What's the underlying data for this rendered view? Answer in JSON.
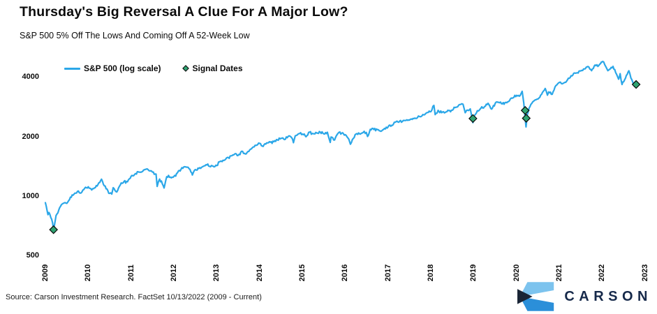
{
  "title": "Thursday's Big Reversal A Clue For A Major Low?",
  "subtitle": "S&P 500 5% Off The Lows And Coming Off A 52-Week Low",
  "legend": {
    "items": [
      {
        "label": "S&P 500 (log scale)",
        "type": "line"
      },
      {
        "label": "Signal Dates",
        "type": "diamond"
      }
    ]
  },
  "source_note": "Source: Carson Investment Research. FactSet 10/13/2022 (2009 - Current)",
  "logo": {
    "wordmark": "CARSON"
  },
  "colors": {
    "line": "#2BA7E8",
    "signal": "#2FA472",
    "signal_outline": "#0a0a0a",
    "text": "#0b0b0b",
    "navy": "#16294A",
    "logo_light": "#7CC3EE",
    "logo_mid": "#2B8FD9",
    "logo_dark": "#1A2536"
  },
  "chart_data": {
    "type": "line",
    "title": "S&P 500 (log scale) with Signal Dates",
    "xlabel": "",
    "ylabel": "",
    "log_scale": true,
    "grid": false,
    "legend_position": "top-left",
    "xlim": [
      2009,
      2023
    ],
    "ylim": [
      460,
      5200
    ],
    "x_ticks": [
      2009,
      2010,
      2011,
      2012,
      2013,
      2014,
      2015,
      2016,
      2017,
      2018,
      2019,
      2020,
      2021,
      2022,
      2023
    ],
    "y_ticks": [
      4000,
      2000,
      1000,
      500
    ],
    "series": [
      {
        "name": "S&P 500",
        "points": [
          [
            2009,
            926
          ],
          [
            2009.06,
            805
          ],
          [
            2009.083,
            826
          ],
          [
            2009.167,
            735
          ],
          [
            2009.19,
            677
          ],
          [
            2009.25,
            798
          ],
          [
            2009.333,
            873
          ],
          [
            2009.417,
            919
          ],
          [
            2009.5,
            919
          ],
          [
            2009.583,
            987
          ],
          [
            2009.667,
            1021
          ],
          [
            2009.75,
            1057
          ],
          [
            2009.833,
            1036
          ],
          [
            2009.917,
            1096
          ],
          [
            2010,
            1115
          ],
          [
            2010.083,
            1074
          ],
          [
            2010.167,
            1104
          ],
          [
            2010.25,
            1169
          ],
          [
            2010.31,
            1217
          ],
          [
            2010.333,
            1187
          ],
          [
            2010.417,
            1089
          ],
          [
            2010.5,
            1031
          ],
          [
            2010.55,
            1023
          ],
          [
            2010.583,
            1102
          ],
          [
            2010.667,
            1049
          ],
          [
            2010.75,
            1141
          ],
          [
            2010.833,
            1183
          ],
          [
            2010.917,
            1181
          ],
          [
            2011,
            1258
          ],
          [
            2011.083,
            1286
          ],
          [
            2011.167,
            1327
          ],
          [
            2011.25,
            1326
          ],
          [
            2011.333,
            1364
          ],
          [
            2011.417,
            1345
          ],
          [
            2011.5,
            1321
          ],
          [
            2011.583,
            1292
          ],
          [
            2011.61,
            1119
          ],
          [
            2011.667,
            1219
          ],
          [
            2011.75,
            1131
          ],
          [
            2011.77,
            1099
          ],
          [
            2011.833,
            1253
          ],
          [
            2011.917,
            1247
          ],
          [
            2012,
            1258
          ],
          [
            2012.083,
            1312
          ],
          [
            2012.167,
            1366
          ],
          [
            2012.25,
            1408
          ],
          [
            2012.333,
            1398
          ],
          [
            2012.417,
            1310
          ],
          [
            2012.43,
            1278
          ],
          [
            2012.5,
            1362
          ],
          [
            2012.583,
            1379
          ],
          [
            2012.667,
            1407
          ],
          [
            2012.75,
            1441
          ],
          [
            2012.833,
            1412
          ],
          [
            2012.917,
            1416
          ],
          [
            2013,
            1426
          ],
          [
            2013.083,
            1498
          ],
          [
            2013.167,
            1515
          ],
          [
            2013.25,
            1569
          ],
          [
            2013.333,
            1598
          ],
          [
            2013.417,
            1631
          ],
          [
            2013.5,
            1606
          ],
          [
            2013.583,
            1686
          ],
          [
            2013.667,
            1633
          ],
          [
            2013.75,
            1682
          ],
          [
            2013.833,
            1757
          ],
          [
            2013.917,
            1806
          ],
          [
            2014,
            1848
          ],
          [
            2014.083,
            1783
          ],
          [
            2014.167,
            1859
          ],
          [
            2014.25,
            1872
          ],
          [
            2014.333,
            1884
          ],
          [
            2014.417,
            1924
          ],
          [
            2014.5,
            1960
          ],
          [
            2014.583,
            1931
          ],
          [
            2014.667,
            2003
          ],
          [
            2014.75,
            1972
          ],
          [
            2014.79,
            1862
          ],
          [
            2014.833,
            2018
          ],
          [
            2014.917,
            2068
          ],
          [
            2015,
            2059
          ],
          [
            2015.083,
            1995
          ],
          [
            2015.167,
            2105
          ],
          [
            2015.25,
            2068
          ],
          [
            2015.333,
            2086
          ],
          [
            2015.417,
            2107
          ],
          [
            2015.5,
            2063
          ],
          [
            2015.583,
            2104
          ],
          [
            2015.65,
            1868
          ],
          [
            2015.667,
            1989
          ],
          [
            2015.75,
            1920
          ],
          [
            2015.833,
            2079
          ],
          [
            2015.917,
            2080
          ],
          [
            2016,
            2044
          ],
          [
            2016.083,
            1940
          ],
          [
            2016.12,
            1829
          ],
          [
            2016.167,
            1932
          ],
          [
            2016.25,
            2060
          ],
          [
            2016.333,
            2065
          ],
          [
            2016.417,
            2097
          ],
          [
            2016.49,
            2099
          ],
          [
            2016.52,
            2001
          ],
          [
            2016.583,
            2174
          ],
          [
            2016.667,
            2171
          ],
          [
            2016.75,
            2168
          ],
          [
            2016.833,
            2126
          ],
          [
            2016.917,
            2199
          ],
          [
            2017,
            2239
          ],
          [
            2017.083,
            2279
          ],
          [
            2017.167,
            2364
          ],
          [
            2017.25,
            2363
          ],
          [
            2017.333,
            2384
          ],
          [
            2017.417,
            2412
          ],
          [
            2017.5,
            2423
          ],
          [
            2017.583,
            2470
          ],
          [
            2017.667,
            2472
          ],
          [
            2017.75,
            2519
          ],
          [
            2017.833,
            2575
          ],
          [
            2017.917,
            2648
          ],
          [
            2018,
            2674
          ],
          [
            2018.07,
            2873
          ],
          [
            2018.1,
            2581
          ],
          [
            2018.167,
            2714
          ],
          [
            2018.25,
            2641
          ],
          [
            2018.333,
            2648
          ],
          [
            2018.417,
            2705
          ],
          [
            2018.5,
            2718
          ],
          [
            2018.583,
            2816
          ],
          [
            2018.667,
            2902
          ],
          [
            2018.72,
            2931
          ],
          [
            2018.75,
            2914
          ],
          [
            2018.8,
            2641
          ],
          [
            2018.833,
            2712
          ],
          [
            2018.917,
            2760
          ],
          [
            2018.98,
            2351
          ],
          [
            2019,
            2507
          ],
          [
            2019.083,
            2704
          ],
          [
            2019.167,
            2784
          ],
          [
            2019.25,
            2834
          ],
          [
            2019.333,
            2946
          ],
          [
            2019.417,
            2752
          ],
          [
            2019.5,
            2942
          ],
          [
            2019.583,
            2980
          ],
          [
            2019.667,
            2926
          ],
          [
            2019.75,
            2977
          ],
          [
            2019.833,
            3038
          ],
          [
            2019.917,
            3141
          ],
          [
            2020,
            3231
          ],
          [
            2020.083,
            3226
          ],
          [
            2020.13,
            3386
          ],
          [
            2020.167,
            2954
          ],
          [
            2020.22,
            2237
          ],
          [
            2020.25,
            2585
          ],
          [
            2020.333,
            2912
          ],
          [
            2020.417,
            3044
          ],
          [
            2020.5,
            3100
          ],
          [
            2020.583,
            3271
          ],
          [
            2020.667,
            3500
          ],
          [
            2020.72,
            3237
          ],
          [
            2020.75,
            3363
          ],
          [
            2020.83,
            3270
          ],
          [
            2020.917,
            3622
          ],
          [
            2021,
            3756
          ],
          [
            2021.083,
            3714
          ],
          [
            2021.167,
            3811
          ],
          [
            2021.25,
            3973
          ],
          [
            2021.333,
            4181
          ],
          [
            2021.417,
            4204
          ],
          [
            2021.5,
            4298
          ],
          [
            2021.583,
            4395
          ],
          [
            2021.667,
            4523
          ],
          [
            2021.75,
            4308
          ],
          [
            2021.833,
            4605
          ],
          [
            2021.917,
            4567
          ],
          [
            2022,
            4766
          ],
          [
            2022.01,
            4797
          ],
          [
            2022.083,
            4516
          ],
          [
            2022.13,
            4306
          ],
          [
            2022.167,
            4374
          ],
          [
            2022.25,
            4530
          ],
          [
            2022.333,
            4132
          ],
          [
            2022.38,
            3901
          ],
          [
            2022.417,
            4158
          ],
          [
            2022.46,
            3667
          ],
          [
            2022.5,
            3785
          ],
          [
            2022.583,
            4130
          ],
          [
            2022.62,
            4305
          ],
          [
            2022.667,
            3955
          ],
          [
            2022.75,
            3586
          ],
          [
            2022.78,
            3577
          ],
          [
            2022.79,
            3669
          ]
        ]
      }
    ],
    "signal_dates": [
      {
        "date": "3/9/2009",
        "x": 2009.19,
        "value": 676
      },
      {
        "date": "12/24/2018",
        "x": 2018.98,
        "value": 2467
      },
      {
        "date": "3/13/2020",
        "x": 2020.2,
        "value": 2711
      },
      {
        "date": "3/25/2020",
        "x": 2020.225,
        "value": 2475
      },
      {
        "date": "10/13/2022",
        "x": 2022.79,
        "value": 3669
      }
    ]
  }
}
